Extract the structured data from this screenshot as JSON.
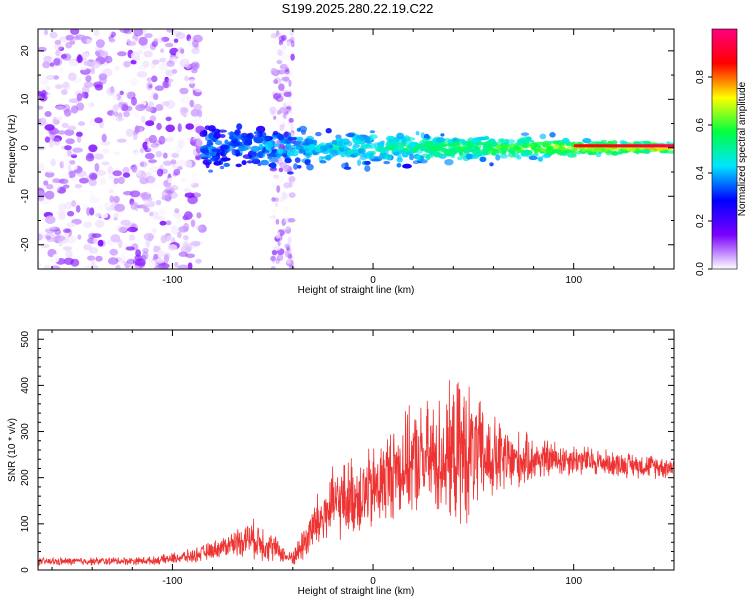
{
  "title": "S199.2025.280.22.19.C22",
  "chart_data": [
    {
      "type": "heatmap",
      "name": "spectrogram",
      "xlabel": "Height of straight line (km)",
      "ylabel": "Frequency (Hz)",
      "xlim": [
        -167,
        150
      ],
      "ylim": [
        -25,
        24.5
      ],
      "xticks": [
        -100,
        0,
        100
      ],
      "yticks": [
        -20,
        -10,
        0,
        10,
        20
      ],
      "colorbar": {
        "label": "Normalized spectral amplitude",
        "range": [
          0,
          1
        ],
        "ticks": [
          0.0,
          0.2,
          0.4,
          0.6,
          0.8
        ],
        "tick_labels": [
          "0.0",
          "0.2",
          "0.4",
          "0.6",
          "0.8"
        ],
        "colormap": [
          "#ffffff",
          "#7a00ff",
          "#0000ff",
          "#00e5ff",
          "#00ff40",
          "#ffff00",
          "#ff0000",
          "#ff0080"
        ]
      },
      "regions": [
        {
          "x": [
            -167,
            -85
          ],
          "y": [
            -25,
            24.5
          ],
          "amplitude": [
            0.0,
            0.15
          ],
          "description": "scattered low-amplitude noise"
        },
        {
          "x": [
            -50,
            -40
          ],
          "y": [
            -25,
            24.5
          ],
          "amplitude": [
            0.0,
            0.15
          ],
          "description": "vertical noise band"
        },
        {
          "x": [
            -85,
            150
          ],
          "center_y": 0,
          "halfwidth_y": [
            6,
            1
          ],
          "amplitude": [
            0.2,
            1.0
          ],
          "description": "signal band narrowing with height"
        }
      ]
    },
    {
      "type": "line",
      "name": "snr",
      "xlabel": "Height of straight line (km)",
      "ylabel": "SNR (10 * v/v)",
      "xlim": [
        -167,
        150
      ],
      "ylim": [
        0,
        520
      ],
      "xticks": [
        -100,
        0,
        100
      ],
      "yticks": [
        0,
        100,
        200,
        300,
        400,
        500
      ],
      "line_color": "#ee3333",
      "envelope": {
        "x": [
          -167,
          -110,
          -90,
          -75,
          -62,
          -55,
          -48,
          -42,
          -38,
          -30,
          -20,
          -10,
          0,
          10,
          20,
          30,
          40,
          45,
          50,
          60,
          70,
          80,
          100,
          120,
          150
        ],
        "mean": [
          18,
          20,
          30,
          50,
          70,
          60,
          45,
          25,
          35,
          90,
          140,
          160,
          170,
          215,
          235,
          240,
          250,
          255,
          250,
          240,
          235,
          240,
          240,
          230,
          222
        ],
        "spread": [
          10,
          10,
          18,
          25,
          45,
          50,
          30,
          15,
          30,
          70,
          90,
          100,
          110,
          120,
          130,
          150,
          170,
          200,
          150,
          110,
          80,
          55,
          40,
          32,
          28
        ]
      }
    }
  ]
}
